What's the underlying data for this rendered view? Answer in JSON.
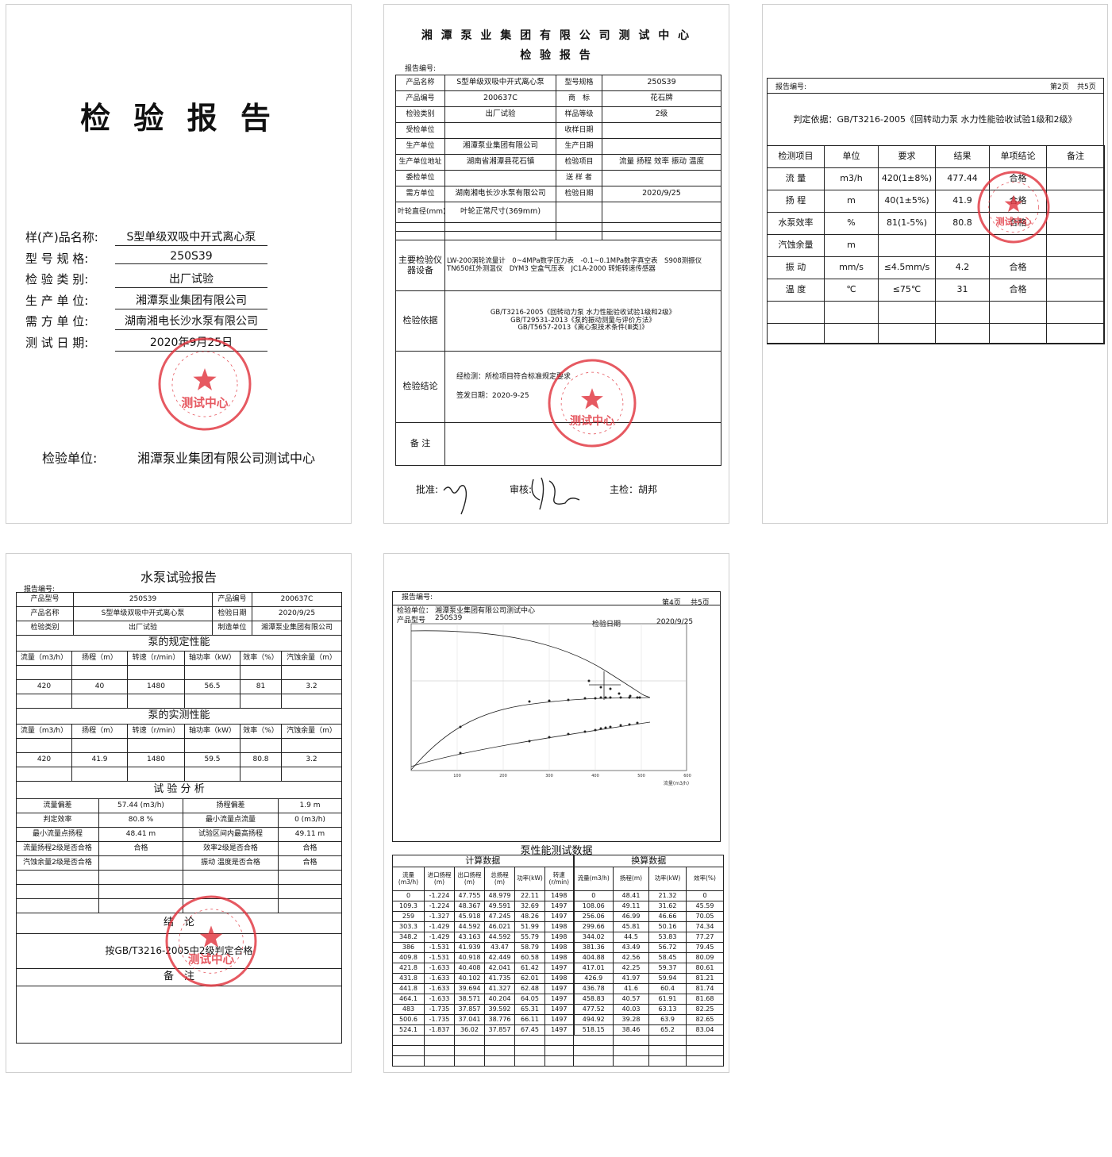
{
  "page1": {
    "title": "检 验 报 告",
    "fields": [
      {
        "label": "样(产)品名称:",
        "value": "S型单级双吸中开式离心泵"
      },
      {
        "label": "型 号 规 格:",
        "value": "250S39"
      },
      {
        "label": "检 验 类 别:",
        "value": "出厂试验"
      },
      {
        "label": "生 产 单 位:",
        "value": "湘潭泵业集团有限公司"
      },
      {
        "label": "需 方 单 位:",
        "value": "湖南湘电长沙水泵有限公司"
      },
      {
        "label": "测 试 日 期:",
        "value": "2020年9月25日"
      }
    ],
    "stamp": "测试中心",
    "footer": {
      "label": "检验单位:",
      "value": "湘潭泵业集团有限公司测试中心"
    }
  },
  "page2": {
    "title": "湘 潭 泵 业 集 团 有 限 公 司 测 试 中 心",
    "subtitle": "检 验 报 告",
    "report_no": "报告编号:",
    "rows": [
      [
        "产品名称",
        "S型单级双吸中开式离心泵",
        "型号规格",
        "250S39"
      ],
      [
        "产品编号",
        "200637C",
        "商　标",
        "花石牌"
      ],
      [
        "检验类别",
        "出厂试验",
        "样品等级",
        "2级"
      ],
      [
        "受检单位",
        null,
        "收样日期",
        null
      ],
      [
        "生产单位",
        "湘潭泵业集团有限公司",
        "生产日期",
        null
      ],
      [
        "生产单位地址",
        "湖南省湘潭县花石镇",
        "检验项目",
        "流量 扬程 效率 振动 温度"
      ],
      [
        "委检单位",
        null,
        "送 样 者",
        null
      ],
      [
        "需方单位",
        "湖南湘电长沙水泵有限公司",
        "检验日期",
        "2020/9/25"
      ],
      [
        "叶轮直径(mm)",
        "叶轮正常尺寸(369mm)",
        null,
        null
      ]
    ],
    "instruments": {
      "label": "主要检验仪器设备",
      "text": "LW-200涡轮流量计　0~4MPa数字压力表　-0.1~0.1MPa数字真空表　S908测振仪 TN650红外测温仪　DYM3 空盒气压表　JC1A-2000 转矩转速传感器"
    },
    "basis": {
      "label": "检验依据",
      "lines": [
        "GB/T3216-2005《回转动力泵 水力性能验收试验1级和2级》",
        "GB/T29531-2013《泵的振动测量与评价方法》",
        "GB/T5657-2013《离心泵技术条件(Ⅲ类)》"
      ]
    },
    "conclusion": {
      "label": "检验结论",
      "text": "经检测：所检项目符合标准规定要求",
      "date": "签发日期：2020-9-25"
    },
    "remarks": {
      "label": "备 注"
    },
    "signatures": {
      "approve": "批准:",
      "review": "审核:",
      "chief": "主检：胡邦"
    },
    "stamp": "测试中心"
  },
  "page3": {
    "report_no": "报告编号:",
    "page": "第2页",
    "total": "共5页",
    "basis": "判定依据：GB/T3216-2005《回转动力泵 水力性能验收试验1级和2级》",
    "header": [
      "检测项目",
      "单位",
      "要求",
      "结果",
      "单项结论",
      "备注"
    ],
    "rows": [
      [
        "流 量",
        "m3/h",
        "420(1±8%)",
        "477.44",
        "合格",
        null
      ],
      [
        "扬 程",
        "m",
        "40(1±5%)",
        "41.9",
        "合格",
        null
      ],
      [
        "水泵效率",
        "%",
        "81(1-5%)",
        "80.8",
        "合格",
        null
      ],
      [
        "汽蚀余量",
        "m",
        null,
        null,
        null,
        null
      ],
      [
        "振 动",
        "mm/s",
        "≤4.5mm/s",
        "4.2",
        "合格",
        null
      ],
      [
        "温 度",
        "℃",
        "≤75℃",
        "31",
        "合格",
        null
      ]
    ],
    "stamp": "测试中心"
  },
  "page4": {
    "title": "水泵试验报告",
    "report_no": "报告编号:",
    "info": [
      [
        "产品型号",
        "250S39",
        "产品编号",
        "200637C"
      ],
      [
        "产品名称",
        "S型单级双吸中开式离心泵",
        "检验日期",
        "2020/9/25"
      ],
      [
        "检验类别",
        "出厂试验",
        "制造单位",
        "湘潭泵业集团有限公司"
      ]
    ],
    "header": [
      "流量（m3/h）",
      "扬程（m）",
      "转速（r/min）",
      "轴功率（kW）",
      "效率（%）",
      "汽蚀余量（m）"
    ],
    "rated": {
      "title": "泵的规定性能",
      "values": [
        "420",
        "40",
        "1480",
        "56.5",
        "81",
        "3.2"
      ]
    },
    "measured": {
      "title": "泵的实测性能",
      "values": [
        "420",
        "41.9",
        "1480",
        "59.5",
        "80.8",
        "3.2"
      ]
    },
    "analysis": {
      "title": "试 验 分 析",
      "rows": [
        [
          "流量偏差",
          "57.44 (m3/h)",
          "扬程偏差",
          "1.9 m"
        ],
        [
          "判定效率",
          "80.8 %",
          "最小流量点流量",
          "0 (m3/h)"
        ],
        [
          "最小流量点扬程",
          "48.41 m",
          "试验区间内最高扬程",
          "49.11 m"
        ],
        [
          "流量扬程2级是否合格",
          "合格",
          "效率2级是否合格",
          "合格"
        ],
        [
          "汽蚀余量2级是否合格",
          null,
          "振动 温度是否合格",
          "合格"
        ]
      ]
    },
    "conclusion": {
      "title": "结　论",
      "text": "按GB/T3216-2005中2级判定合格"
    },
    "remarks": "备　注",
    "stamp": "测试中心"
  },
  "page5": {
    "report_no": "报告编号:",
    "page": "第4页",
    "total": "共5页",
    "unit_label": "检验单位：",
    "unit": "湘潭泵业集团有限公司测试中心",
    "model_label": "产品型号",
    "model": "250S39",
    "date_label": "检验日期",
    "date": "2020/9/25",
    "chart": {
      "xtick_labels": [
        "100",
        "200",
        "300",
        "400",
        "500",
        "600"
      ],
      "x_label": "流量(m3/h)"
    },
    "title": "泵性能测试数据",
    "group_calc": "计算数据",
    "group_conv": "换算数据",
    "header": [
      "流量(m3/h)",
      "进口扬程(m)",
      "出口扬程(m)",
      "总扬程(m)",
      "功率(kW)",
      "转速(r/min)",
      "流量(m3/h)",
      "扬程(m)",
      "功率(kW)",
      "效率(%)"
    ],
    "rows": [
      [
        "0",
        "-1.224",
        "47.755",
        "48.979",
        "22.11",
        "1498",
        "0",
        "48.41",
        "21.32",
        "0"
      ],
      [
        "109.3",
        "-1.224",
        "48.367",
        "49.591",
        "32.69",
        "1497",
        "108.06",
        "49.11",
        "31.62",
        "45.59"
      ],
      [
        "259",
        "-1.327",
        "45.918",
        "47.245",
        "48.26",
        "1497",
        "256.06",
        "46.99",
        "46.66",
        "70.05"
      ],
      [
        "303.3",
        "-1.429",
        "44.592",
        "46.021",
        "51.99",
        "1498",
        "299.66",
        "45.81",
        "50.16",
        "74.34"
      ],
      [
        "348.2",
        "-1.429",
        "43.163",
        "44.592",
        "55.79",
        "1498",
        "344.02",
        "44.5",
        "53.83",
        "77.27"
      ],
      [
        "386",
        "-1.531",
        "41.939",
        "43.47",
        "58.79",
        "1498",
        "381.36",
        "43.49",
        "56.72",
        "79.45"
      ],
      [
        "409.8",
        "-1.531",
        "40.918",
        "42.449",
        "60.58",
        "1498",
        "404.88",
        "42.56",
        "58.45",
        "80.09"
      ],
      [
        "421.8",
        "-1.633",
        "40.408",
        "42.041",
        "61.42",
        "1497",
        "417.01",
        "42.25",
        "59.37",
        "80.61"
      ],
      [
        "431.8",
        "-1.633",
        "40.102",
        "41.735",
        "62.01",
        "1498",
        "426.9",
        "41.97",
        "59.94",
        "81.21"
      ],
      [
        "441.8",
        "-1.633",
        "39.694",
        "41.327",
        "62.48",
        "1497",
        "436.78",
        "41.6",
        "60.4",
        "81.74"
      ],
      [
        "464.1",
        "-1.633",
        "38.571",
        "40.204",
        "64.05",
        "1497",
        "458.83",
        "40.57",
        "61.91",
        "81.68"
      ],
      [
        "483",
        "-1.735",
        "37.857",
        "39.592",
        "65.31",
        "1497",
        "477.52",
        "40.03",
        "63.13",
        "82.25"
      ],
      [
        "500.6",
        "-1.735",
        "37.041",
        "38.776",
        "66.11",
        "1497",
        "494.92",
        "39.28",
        "63.9",
        "82.65"
      ],
      [
        "524.1",
        "-1.837",
        "36.02",
        "37.857",
        "67.45",
        "1497",
        "518.15",
        "38.46",
        "65.2",
        "83.04"
      ]
    ]
  }
}
